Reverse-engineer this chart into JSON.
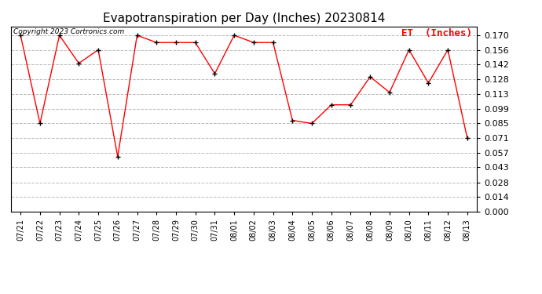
{
  "title": "Evapotranspiration per Day (Inches) 20230814",
  "legend_label": "ET  (Inches)",
  "copyright": "Copyright 2023 Cortronics.com",
  "dates": [
    "07/21",
    "07/22",
    "07/23",
    "07/24",
    "07/25",
    "07/26",
    "07/27",
    "07/28",
    "07/29",
    "07/30",
    "07/31",
    "08/01",
    "08/02",
    "08/03",
    "08/04",
    "08/05",
    "08/06",
    "08/07",
    "08/08",
    "08/09",
    "08/10",
    "08/11",
    "08/12",
    "08/13"
  ],
  "values": [
    0.17,
    0.085,
    0.17,
    0.143,
    0.156,
    0.053,
    0.17,
    0.163,
    0.163,
    0.163,
    0.133,
    0.17,
    0.163,
    0.163,
    0.088,
    0.085,
    0.103,
    0.103,
    0.13,
    0.115,
    0.156,
    0.124,
    0.156,
    0.071
  ],
  "ylim": [
    0.0,
    0.1785
  ],
  "yticks": [
    0.0,
    0.014,
    0.028,
    0.043,
    0.057,
    0.071,
    0.085,
    0.099,
    0.113,
    0.128,
    0.142,
    0.156,
    0.17
  ],
  "line_color": "red",
  "marker": "+",
  "background_color": "white",
  "grid_color": "#bbbbbb",
  "title_fontsize": 11,
  "copyright_fontsize": 6.5,
  "legend_color": "red",
  "legend_fontsize": 9,
  "tick_fontsize": 8,
  "xtick_fontsize": 7
}
